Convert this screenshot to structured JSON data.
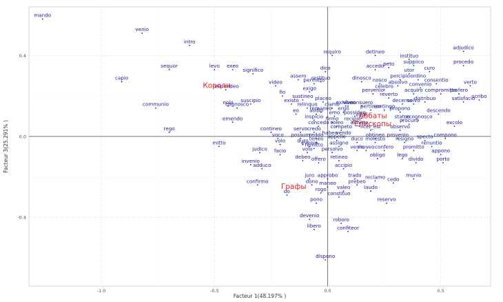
{
  "chart_data": {
    "type": "scatter",
    "xlabel": "Facteur 1(48.197% )",
    "ylabel": "Facteur 3(25.291% )",
    "xlim": [
      -1.32,
      0.72
    ],
    "ylim": [
      -0.74,
      0.64
    ],
    "x_ticks": [
      -1.0,
      -0.5,
      0.0,
      0.5
    ],
    "x_tick_labels": [
      "-1.0",
      "-0.5",
      "0.0",
      "0.5"
    ],
    "y_ticks": [
      -0.4,
      0.0,
      0.4
    ],
    "y_tick_labels": [
      "-0.4",
      "0.0",
      "0.4"
    ],
    "grid": true,
    "reference_lines": {
      "x": 0,
      "y": 0
    },
    "colors": {
      "points": "#1a1a8c",
      "groups": "#d62728",
      "grid": "#dddddd",
      "axes": "#777777"
    },
    "points": [
      {
        "label": "mando",
        "x": -1.26,
        "y": 0.58
      },
      {
        "label": "venio",
        "x": -0.82,
        "y": 0.51
      },
      {
        "label": "intro",
        "x": -0.61,
        "y": 0.45
      },
      {
        "label": "sequor",
        "x": -0.7,
        "y": 0.33
      },
      {
        "label": "capio",
        "x": -0.91,
        "y": 0.27
      },
      {
        "label": "levo",
        "x": -0.5,
        "y": 0.33
      },
      {
        "label": "exeo",
        "x": -0.42,
        "y": 0.33
      },
      {
        "label": "significo",
        "x": -0.33,
        "y": 0.31
      },
      {
        "label": "communio",
        "x": -0.76,
        "y": 0.14
      },
      {
        "label": "rego",
        "x": -0.7,
        "y": 0.02
      },
      {
        "label": "respondeo",
        "x": -0.45,
        "y": 0.23
      },
      {
        "label": "nolo",
        "x": -0.44,
        "y": 0.15
      },
      {
        "label": "cognosco",
        "x": -0.4,
        "y": 0.14
      },
      {
        "label": "suscipio",
        "x": -0.34,
        "y": 0.16
      },
      {
        "label": "emendo",
        "x": -0.42,
        "y": 0.07
      },
      {
        "label": "mitto",
        "x": -0.48,
        "y": -0.05
      },
      {
        "label": "judico",
        "x": -0.3,
        "y": -0.08
      },
      {
        "label": "invenio",
        "x": -0.34,
        "y": -0.14
      },
      {
        "label": "adduco",
        "x": -0.29,
        "y": -0.16
      },
      {
        "label": "confirmo",
        "x": -0.31,
        "y": -0.24
      },
      {
        "label": "contineo",
        "x": -0.25,
        "y": 0.02
      },
      {
        "label": "voco",
        "x": -0.22,
        "y": -0.01
      },
      {
        "label": "volo",
        "x": -0.21,
        "y": -0.04
      },
      {
        "label": "facio",
        "x": -0.21,
        "y": -0.09
      },
      {
        "label": "video",
        "x": -0.23,
        "y": 0.25
      },
      {
        "label": "fio",
        "x": -0.2,
        "y": 0.2
      },
      {
        "label": "assero",
        "x": -0.13,
        "y": 0.28
      },
      {
        "label": "permitto",
        "x": -0.06,
        "y": 0.26
      },
      {
        "label": "exigo",
        "x": -0.08,
        "y": 0.22
      },
      {
        "label": "sustineo",
        "x": -0.11,
        "y": 0.18
      },
      {
        "label": "existo",
        "x": -0.16,
        "y": 0.16
      },
      {
        "label": "relinquo",
        "x": -0.09,
        "y": 0.14
      },
      {
        "label": "eo",
        "x": -0.14,
        "y": 0.11
      },
      {
        "label": "dico",
        "x": -0.01,
        "y": 0.32
      },
      {
        "label": "restituo",
        "x": -0.03,
        "y": 0.27
      },
      {
        "label": "requiro",
        "x": 0.02,
        "y": 0.4
      },
      {
        "label": "placeo",
        "x": -0.02,
        "y": 0.17
      },
      {
        "label": "clamo",
        "x": 0.02,
        "y": 0.14
      },
      {
        "label": "remaneo",
        "x": -0.03,
        "y": 0.12
      },
      {
        "label": "audio",
        "x": -0.05,
        "y": 0.11
      },
      {
        "label": "inspicio",
        "x": -0.06,
        "y": 0.08
      },
      {
        "label": "concedo",
        "x": -0.04,
        "y": 0.05
      },
      {
        "label": "credo",
        "x": -0.06,
        "y": 0.02
      },
      {
        "label": "servo",
        "x": -0.12,
        "y": 0.02
      },
      {
        "label": "possum",
        "x": -0.12,
        "y": -0.01
      },
      {
        "label": "reddo",
        "x": -0.05,
        "y": -0.01
      },
      {
        "label": "teneo",
        "x": -0.05,
        "y": -0.03
      },
      {
        "label": "duro",
        "x": -0.11,
        "y": -0.04
      },
      {
        "label": "evenio",
        "x": -0.08,
        "y": -0.05
      },
      {
        "label": "remitto",
        "x": -0.06,
        "y": -0.06
      },
      {
        "label": "volo",
        "x": -0.09,
        "y": -0.08
      },
      {
        "label": "debeo",
        "x": -0.11,
        "y": -0.12
      },
      {
        "label": "offero",
        "x": -0.04,
        "y": -0.13
      },
      {
        "label": "juro",
        "x": -0.08,
        "y": -0.21
      },
      {
        "label": "dono",
        "x": -0.07,
        "y": -0.24
      },
      {
        "label": "approbo",
        "x": 0.0,
        "y": -0.21
      },
      {
        "label": "maneo",
        "x": 0.0,
        "y": -0.25
      },
      {
        "label": "rogo",
        "x": -0.03,
        "y": -0.28
      },
      {
        "label": "pono",
        "x": -0.05,
        "y": -0.33
      },
      {
        "label": "do",
        "x": -0.18,
        "y": -0.29
      },
      {
        "label": "devenio",
        "x": -0.08,
        "y": -0.41
      },
      {
        "label": "libero",
        "x": -0.06,
        "y": -0.46
      },
      {
        "label": "dispono",
        "x": -0.01,
        "y": -0.61
      },
      {
        "label": "roboro",
        "x": 0.06,
        "y": -0.43
      },
      {
        "label": "confiteor",
        "x": 0.09,
        "y": -0.47
      },
      {
        "label": "vivo",
        "x": 0.09,
        "y": 0.15
      },
      {
        "label": "exhibeo",
        "x": 0.08,
        "y": 0.15
      },
      {
        "label": "ergo",
        "x": 0.07,
        "y": 0.12
      },
      {
        "label": "emo",
        "x": 0.03,
        "y": 0.1
      },
      {
        "label": "firmo",
        "x": 0.02,
        "y": 0.07
      },
      {
        "label": "soleo",
        "x": 0.04,
        "y": 0.05
      },
      {
        "label": "competo",
        "x": 0.06,
        "y": 0.03
      },
      {
        "label": "habeo",
        "x": 0.01,
        "y": 0.0
      },
      {
        "label": "vendo",
        "x": 0.07,
        "y": 0.0
      },
      {
        "label": "appello",
        "x": 0.04,
        "y": -0.02
      },
      {
        "label": "assigno",
        "x": 0.05,
        "y": -0.05
      },
      {
        "label": "persolvo",
        "x": 0.02,
        "y": -0.08
      },
      {
        "label": "retineo",
        "x": 0.05,
        "y": -0.12
      },
      {
        "label": "accipio",
        "x": 0.07,
        "y": -0.16
      },
      {
        "label": "trado",
        "x": 0.12,
        "y": -0.21
      },
      {
        "label": "prebeo",
        "x": 0.13,
        "y": -0.24
      },
      {
        "label": "valeo",
        "x": 0.07,
        "y": -0.27
      },
      {
        "label": "constituo",
        "x": 0.05,
        "y": -0.3
      },
      {
        "label": "possideo",
        "x": 0.12,
        "y": 0.1
      },
      {
        "label": "consuero",
        "x": 0.15,
        "y": 0.15
      },
      {
        "label": "pertineo",
        "x": 0.19,
        "y": 0.13
      },
      {
        "label": "vado",
        "x": 0.15,
        "y": 0.09
      },
      {
        "label": "recipio",
        "x": 0.11,
        "y": 0.07
      },
      {
        "label": "dimitto",
        "x": 0.14,
        "y": 0.05
      },
      {
        "label": "duco",
        "x": 0.13,
        "y": -0.03
      },
      {
        "label": "venio",
        "x": 0.13,
        "y": -0.07
      },
      {
        "label": "moveo",
        "x": 0.17,
        "y": -0.07
      },
      {
        "label": "licet_est",
        "x": 0.19,
        "y": 0.03
      },
      {
        "label": "obtineo",
        "x": 0.21,
        "y": -0.01
      },
      {
        "label": "molesto",
        "x": 0.21,
        "y": -0.03
      },
      {
        "label": "obligo",
        "x": 0.22,
        "y": -0.11
      },
      {
        "label": "confero",
        "x": 0.25,
        "y": -0.07
      },
      {
        "label": "reclamo",
        "x": 0.21,
        "y": -0.22
      },
      {
        "label": "laudo",
        "x": 0.19,
        "y": -0.27
      },
      {
        "label": "cedo",
        "x": 0.29,
        "y": -0.23
      },
      {
        "label": "reservo",
        "x": 0.26,
        "y": -0.33
      },
      {
        "label": "detineo",
        "x": 0.21,
        "y": 0.4
      },
      {
        "label": "accedo",
        "x": 0.21,
        "y": 0.33
      },
      {
        "label": "peto",
        "x": 0.27,
        "y": 0.34
      },
      {
        "label": "dinosco",
        "x": 0.15,
        "y": 0.27
      },
      {
        "label": "nosco",
        "x": 0.23,
        "y": 0.26
      },
      {
        "label": "celebro",
        "x": 0.25,
        "y": 0.23
      },
      {
        "label": "pervenio",
        "x": 0.2,
        "y": 0.21
      },
      {
        "label": "reverto",
        "x": 0.27,
        "y": 0.19
      },
      {
        "label": "contingo",
        "x": 0.25,
        "y": 0.13
      },
      {
        "label": "observo",
        "x": 0.32,
        "y": 0.03
      },
      {
        "label": "instituo",
        "x": 0.36,
        "y": 0.38
      },
      {
        "label": "suppiico",
        "x": 0.38,
        "y": 0.35
      },
      {
        "label": "utor",
        "x": 0.36,
        "y": 0.31
      },
      {
        "label": "curo",
        "x": 0.45,
        "y": 0.32
      },
      {
        "label": "percipio",
        "x": 0.32,
        "y": 0.28
      },
      {
        "label": "absolvo",
        "x": 0.31,
        "y": 0.25
      },
      {
        "label": "ordino",
        "x": 0.4,
        "y": 0.28
      },
      {
        "label": "consentio",
        "x": 0.48,
        "y": 0.26
      },
      {
        "label": "acquiro",
        "x": 0.38,
        "y": 0.21
      },
      {
        "label": "convenio",
        "x": 0.41,
        "y": 0.24
      },
      {
        "label": "compromitto",
        "x": 0.5,
        "y": 0.21
      },
      {
        "label": "solvo",
        "x": 0.38,
        "y": 0.16
      },
      {
        "label": "decerno",
        "x": 0.33,
        "y": 0.16
      },
      {
        "label": "distribuo",
        "x": 0.43,
        "y": 0.17
      },
      {
        "label": "propono",
        "x": 0.32,
        "y": 0.12
      },
      {
        "label": "statuo",
        "x": 0.33,
        "y": 0.08
      },
      {
        "label": "procuro",
        "x": 0.36,
        "y": 0.06
      },
      {
        "label": "recognosco",
        "x": 0.4,
        "y": 0.08
      },
      {
        "label": "descendo",
        "x": 0.49,
        "y": 0.11
      },
      {
        "label": "adjudico",
        "x": 0.6,
        "y": 0.42
      },
      {
        "label": "procedo",
        "x": 0.6,
        "y": 0.35
      },
      {
        "label": "verto",
        "x": 0.63,
        "y": 0.25
      },
      {
        "label": "profero",
        "x": 0.58,
        "y": 0.21
      },
      {
        "label": "scribo",
        "x": 0.67,
        "y": 0.18
      },
      {
        "label": "satisfacio",
        "x": 0.6,
        "y": 0.17
      },
      {
        "label": "excolo",
        "x": 0.56,
        "y": 0.05
      },
      {
        "label": "compono",
        "x": 0.52,
        "y": -0.01
      },
      {
        "label": "provenio",
        "x": 0.31,
        "y": -0.01
      },
      {
        "label": "resigno",
        "x": 0.34,
        "y": -0.03
      },
      {
        "label": "specto",
        "x": 0.43,
        "y": -0.02
      },
      {
        "label": "renuntio",
        "x": 0.46,
        "y": -0.05
      },
      {
        "label": "promitto",
        "x": 0.38,
        "y": -0.07
      },
      {
        "label": "appono",
        "x": 0.5,
        "y": -0.09
      },
      {
        "label": "lego",
        "x": 0.33,
        "y": -0.11
      },
      {
        "label": "divido",
        "x": 0.39,
        "y": -0.13
      },
      {
        "label": "porto",
        "x": 0.51,
        "y": -0.13
      },
      {
        "label": "munio",
        "x": 0.38,
        "y": -0.21
      }
    ],
    "group_labels": [
      {
        "label": "Короли",
        "x": -0.49,
        "y": 0.24
      },
      {
        "label": "Аббаты",
        "x": 0.2,
        "y": 0.09
      },
      {
        "label": "Епископы",
        "x": 0.2,
        "y": 0.05
      },
      {
        "label": "Графы",
        "x": -0.15,
        "y": -0.26
      }
    ]
  }
}
